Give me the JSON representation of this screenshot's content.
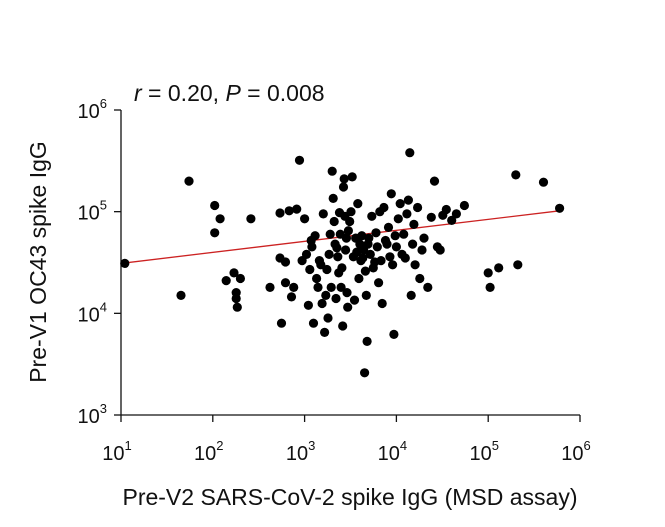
{
  "chart_data": {
    "type": "scatter",
    "title": "",
    "annotation": {
      "r_sym": "r",
      "r_val": " = 0.20, ",
      "p_sym": "P",
      "p_val": " = 0.008"
    },
    "xlabel": "Pre-V2 SARS-CoV-2 spike IgG (MSD assay)",
    "ylabel": "Pre-V1 OC43 spike IgG",
    "x_scale": "log",
    "y_scale": "log",
    "xlim": [
      10,
      1000000
    ],
    "ylim": [
      1000,
      1000000
    ],
    "x_ticks": [
      {
        "base": "10",
        "exp": "1"
      },
      {
        "base": "10",
        "exp": "2"
      },
      {
        "base": "10",
        "exp": "3"
      },
      {
        "base": "10",
        "exp": "4"
      },
      {
        "base": "10",
        "exp": "5"
      },
      {
        "base": "10",
        "exp": "6"
      }
    ],
    "y_ticks": [
      {
        "base": "10",
        "exp": "3"
      },
      {
        "base": "10",
        "exp": "4"
      },
      {
        "base": "10",
        "exp": "5"
      },
      {
        "base": "10",
        "exp": "6"
      }
    ],
    "grid": false,
    "point_color": "#000000",
    "line_color": "#cc2222",
    "regression_line": {
      "x": [
        10,
        600000
      ],
      "y": [
        31000,
        102000
      ]
    },
    "points": [
      [
        11,
        31000
      ],
      [
        45,
        15000
      ],
      [
        55,
        200000
      ],
      [
        105,
        115000
      ],
      [
        105,
        62000
      ],
      [
        120,
        85000
      ],
      [
        140,
        21000
      ],
      [
        170,
        25000
      ],
      [
        180,
        16000
      ],
      [
        180,
        14000
      ],
      [
        185,
        11500
      ],
      [
        200,
        22000
      ],
      [
        260,
        85000
      ],
      [
        420,
        18000
      ],
      [
        540,
        97000
      ],
      [
        540,
        35000
      ],
      [
        560,
        8000
      ],
      [
        620,
        32000
      ],
      [
        620,
        20000
      ],
      [
        680,
        102000
      ],
      [
        720,
        14500
      ],
      [
        760,
        18000
      ],
      [
        820,
        106000
      ],
      [
        880,
        320000
      ],
      [
        940,
        33000
      ],
      [
        1000,
        85000
      ],
      [
        1050,
        38000
      ],
      [
        1100,
        12000
      ],
      [
        1140,
        27000
      ],
      [
        1180,
        52000
      ],
      [
        1200,
        45000
      ],
      [
        1250,
        8000
      ],
      [
        1300,
        58000
      ],
      [
        1350,
        22000
      ],
      [
        1400,
        18000
      ],
      [
        1450,
        33000
      ],
      [
        1500,
        30000
      ],
      [
        1550,
        12500
      ],
      [
        1600,
        95000
      ],
      [
        1650,
        6500
      ],
      [
        1700,
        15000
      ],
      [
        1750,
        27000
      ],
      [
        1800,
        9000
      ],
      [
        1850,
        38000
      ],
      [
        1900,
        60000
      ],
      [
        1950,
        18000
      ],
      [
        2000,
        250000
      ],
      [
        2050,
        135000
      ],
      [
        2100,
        80000
      ],
      [
        2150,
        48000
      ],
      [
        2200,
        14000
      ],
      [
        2250,
        44000
      ],
      [
        2300,
        36000
      ],
      [
        2350,
        25000
      ],
      [
        2400,
        98000
      ],
      [
        2450,
        60000
      ],
      [
        2500,
        18000
      ],
      [
        2550,
        28000
      ],
      [
        2600,
        7500
      ],
      [
        2650,
        175000
      ],
      [
        2700,
        210000
      ],
      [
        2750,
        90000
      ],
      [
        2800,
        42000
      ],
      [
        2850,
        55000
      ],
      [
        2900,
        16000
      ],
      [
        2950,
        11500
      ],
      [
        3000,
        65000
      ],
      [
        3100,
        80000
      ],
      [
        3200,
        100000
      ],
      [
        3300,
        220000
      ],
      [
        3400,
        36000
      ],
      [
        3500,
        13500
      ],
      [
        3600,
        55000
      ],
      [
        3700,
        40000
      ],
      [
        3800,
        120000
      ],
      [
        3900,
        22000
      ],
      [
        4000,
        48000
      ],
      [
        4100,
        33000
      ],
      [
        4200,
        58000
      ],
      [
        4300,
        35000
      ],
      [
        4400,
        42000
      ],
      [
        4500,
        2600
      ],
      [
        4600,
        26000
      ],
      [
        4700,
        15000
      ],
      [
        4800,
        5300
      ],
      [
        4900,
        48000
      ],
      [
        5000,
        55000
      ],
      [
        5200,
        38000
      ],
      [
        5400,
        90000
      ],
      [
        5600,
        28000
      ],
      [
        5800,
        32000
      ],
      [
        6000,
        62000
      ],
      [
        6200,
        45000
      ],
      [
        6400,
        20000
      ],
      [
        6600,
        100000
      ],
      [
        6800,
        33000
      ],
      [
        7000,
        12500
      ],
      [
        7300,
        110000
      ],
      [
        7600,
        52000
      ],
      [
        7900,
        48000
      ],
      [
        8200,
        70000
      ],
      [
        8500,
        36000
      ],
      [
        8800,
        150000
      ],
      [
        9100,
        30000
      ],
      [
        9400,
        6200
      ],
      [
        9700,
        58000
      ],
      [
        10000,
        45000
      ],
      [
        10500,
        85000
      ],
      [
        11000,
        120000
      ],
      [
        11500,
        38000
      ],
      [
        12000,
        60000
      ],
      [
        12500,
        35000
      ],
      [
        13000,
        95000
      ],
      [
        13500,
        130000
      ],
      [
        14000,
        380000
      ],
      [
        14500,
        15000
      ],
      [
        15000,
        48000
      ],
      [
        15500,
        75000
      ],
      [
        16000,
        30000
      ],
      [
        17000,
        110000
      ],
      [
        18000,
        22000
      ],
      [
        19000,
        42000
      ],
      [
        20000,
        55000
      ],
      [
        22000,
        18000
      ],
      [
        24000,
        88000
      ],
      [
        26000,
        200000
      ],
      [
        28000,
        45000
      ],
      [
        30000,
        42000
      ],
      [
        32000,
        92000
      ],
      [
        35000,
        105000
      ],
      [
        40000,
        82000
      ],
      [
        45000,
        95000
      ],
      [
        55000,
        115000
      ],
      [
        100000,
        25000
      ],
      [
        105000,
        18000
      ],
      [
        130000,
        28000
      ],
      [
        200000,
        230000
      ],
      [
        210000,
        30000
      ],
      [
        400000,
        195000
      ],
      [
        600000,
        108000
      ]
    ]
  }
}
